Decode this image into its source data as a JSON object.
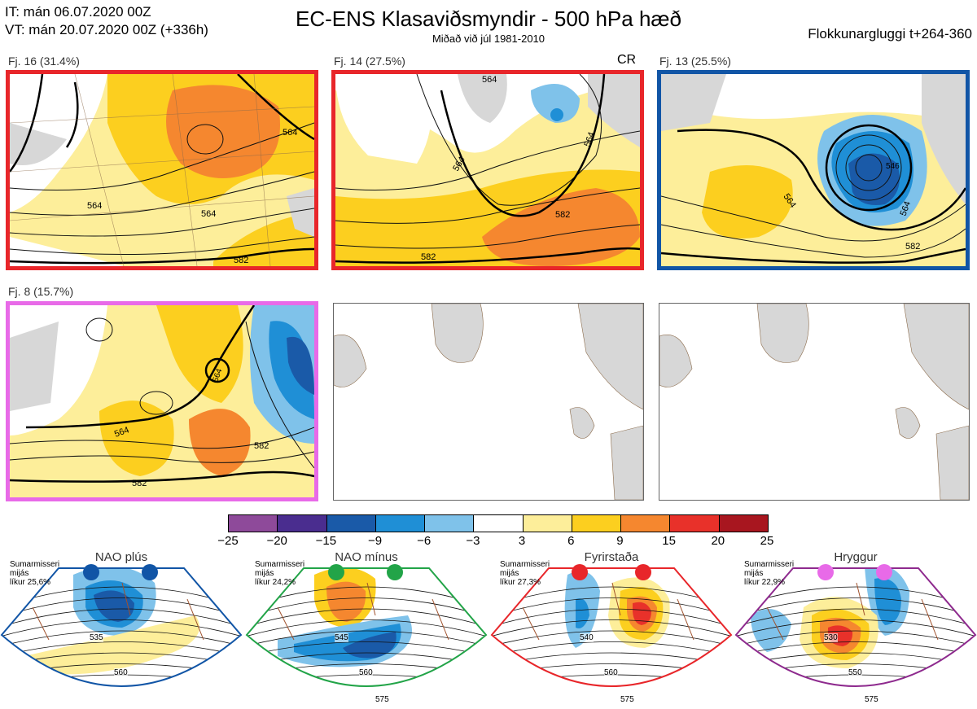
{
  "header": {
    "line1": "IT: mán 06.07.2020 00Z",
    "line2": "VT: mán 20.07.2020 00Z  (+336h)",
    "title": "EC-ENS Klasaviðsmyndir - 500 hPa hæð",
    "subtitle": "Miðað við júl 1981-2010",
    "right": "Flokkunargluggi t+264-360"
  },
  "clusters": [
    {
      "label": "Fj. 16 (31.4%)",
      "border": "#e8262a",
      "tag": "",
      "contours": [
        "564",
        "564",
        "582",
        "564"
      ]
    },
    {
      "label": "Fj. 14 (27.5%)",
      "border": "#e8262a",
      "tag": "CR",
      "contours": [
        "564",
        "582",
        "582",
        "564",
        "564"
      ]
    },
    {
      "label": "Fj. 13 (25.5%)",
      "border": "#1155a6",
      "tag": "",
      "contours": [
        "564",
        "582",
        "564",
        "546"
      ]
    },
    {
      "label": "Fj. 8 (15.7%)",
      "border": "#e86ae8",
      "tag": "",
      "contours": [
        "564",
        "582",
        "582",
        "564"
      ]
    }
  ],
  "colorbar": {
    "labels": [
      "−25",
      "−20",
      "−15",
      "−9",
      "−6",
      "−3",
      "3",
      "6",
      "9",
      "15",
      "20",
      "25"
    ],
    "colors": [
      "#8e4a9a",
      "#4a2d8f",
      "#1a5aa8",
      "#1f8fd6",
      "#7fc2ea",
      "#ffffff",
      "#fdee9a",
      "#fccf1f",
      "#f5872f",
      "#e8312a",
      "#a8161f"
    ]
  },
  "regimes": [
    {
      "title": "NAO plús",
      "info": [
        "Sumarmisseri",
        "mijás",
        "líkur 25,6%"
      ],
      "color": "#1155a6",
      "dot": "#1155a6",
      "contours": [
        "535",
        "560"
      ]
    },
    {
      "title": "NAO mínus",
      "info": [
        "Sumarmisseri",
        "mijás",
        "líkur 24,2%"
      ],
      "color": "#22a448",
      "dot": "#22a448",
      "contours": [
        "545",
        "560",
        "575"
      ]
    },
    {
      "title": "Fyrirstaða",
      "info": [
        "Sumarmisseri",
        "mijás",
        "líkur 27,3%"
      ],
      "color": "#e8262a",
      "dot": "#e8262a",
      "contours": [
        "540",
        "560",
        "575"
      ]
    },
    {
      "title": "Hryggur",
      "info": [
        "Sumarmisseri",
        "mijás",
        "líkur 22,9%"
      ],
      "color": "#8e2a8e",
      "dot": "#e86ae8",
      "contours": [
        "530",
        "550",
        "575"
      ]
    }
  ]
}
